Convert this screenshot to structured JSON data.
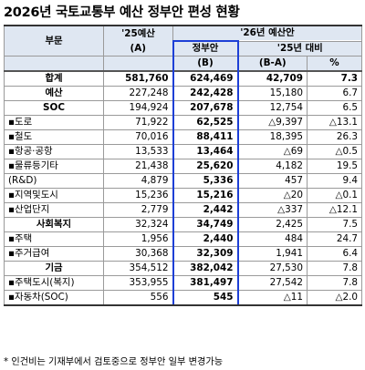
{
  "title": "2026년 국토교통부 예산 정부안 편성 현황",
  "header": {
    "col_category": "부문",
    "col_2025_top": "'25예산",
    "col_2025_bottom": "(A)",
    "col_2026_group": "'26년 예산안",
    "col_gov_top": "정부안",
    "col_gov_bottom": "(B)",
    "col_diff_group": "'25년 대비",
    "col_diff_amount": "(B-A)",
    "col_diff_pct": "%"
  },
  "rows": [
    {
      "category": "합계",
      "a": "581,760",
      "b": "624,469",
      "diff": "42,709",
      "pct": "7.3",
      "style": "bold-center"
    },
    {
      "category": "예산",
      "a": "227,248",
      "b": "242,428",
      "diff": "15,180",
      "pct": "6.7",
      "style": "center"
    },
    {
      "category": "SOC",
      "a": "194,924",
      "b": "207,678",
      "diff": "12,754",
      "pct": "6.5",
      "style": "center"
    },
    {
      "category": "▪도로",
      "a": "71,922",
      "b": "62,525",
      "diff": "△9,397",
      "pct": "△13.1",
      "style": "left"
    },
    {
      "category": "▪철도",
      "a": "70,016",
      "b": "88,411",
      "diff": "18,395",
      "pct": "26.3",
      "style": "left"
    },
    {
      "category": "▪항공·공항",
      "a": "13,533",
      "b": "13,464",
      "diff": "△69",
      "pct": "△0.5",
      "style": "left"
    },
    {
      "category": "▪물류등기타",
      "a": "21,438",
      "b": "25,620",
      "diff": "4,182",
      "pct": "19.5",
      "style": "left"
    },
    {
      "category": "(R&D)",
      "a": "4,879",
      "b": "5,336",
      "diff": "457",
      "pct": "9.4",
      "style": "left"
    },
    {
      "category": "▪지역및도시",
      "a": "15,236",
      "b": "15,216",
      "diff": "△20",
      "pct": "△0.1",
      "style": "left"
    },
    {
      "category": "▪산업단지",
      "a": "2,779",
      "b": "2,442",
      "diff": "△337",
      "pct": "△12.1",
      "style": "left"
    },
    {
      "category": "사회복지",
      "a": "32,324",
      "b": "34,749",
      "diff": "2,425",
      "pct": "7.5",
      "style": "center"
    },
    {
      "category": "▪주택",
      "a": "1,956",
      "b": "2,440",
      "diff": "484",
      "pct": "24.7",
      "style": "left"
    },
    {
      "category": "▪주거급여",
      "a": "30,368",
      "b": "32,309",
      "diff": "1,941",
      "pct": "6.4",
      "style": "left"
    },
    {
      "category": "기금",
      "a": "354,512",
      "b": "382,042",
      "diff": "27,530",
      "pct": "7.8",
      "style": "center"
    },
    {
      "category": "▪주택도시(복지)",
      "a": "353,955",
      "b": "381,497",
      "diff": "27,542",
      "pct": "7.8",
      "style": "left"
    },
    {
      "category": "▪자동차(SOC)",
      "a": "556",
      "b": "545",
      "diff": "△11",
      "pct": "△2.0",
      "style": "left"
    }
  ],
  "footnote": "* 인건비는 기재부에서 검토중으로 정부안 일부 변경가능"
}
